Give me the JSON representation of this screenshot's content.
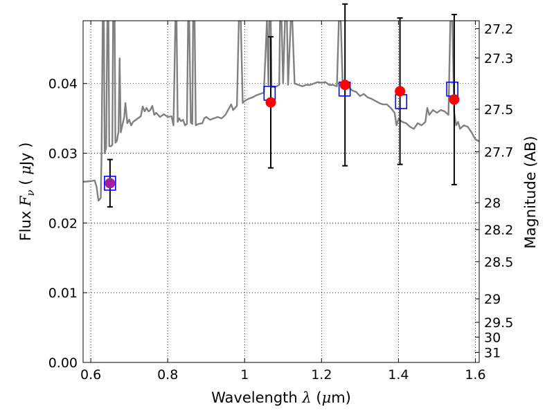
{
  "chart_data": {
    "type": "scatter",
    "title": "",
    "xlabel": {
      "prefix": "Wavelength  ",
      "symbol": "λ",
      "unit_open": " (",
      "unit_symbol": "μ",
      "unit_rest": "m)"
    },
    "ylabel": {
      "prefix": "Flux  ",
      "symbol": "F",
      "subscript": "ν",
      "unit_open": "  ( ",
      "unit_symbol": "μ",
      "unit_rest": "Jy )"
    },
    "y2label": "Magnitude (AB)",
    "xlim": [
      0.58,
      1.61
    ],
    "ylim": [
      0.0,
      0.049
    ],
    "grid": true,
    "x_ticks": [
      {
        "value": 0.6,
        "label": "0.6"
      },
      {
        "value": 0.8,
        "label": "0.8"
      },
      {
        "value": 1.0,
        "label": "1"
      },
      {
        "value": 1.2,
        "label": "1.2"
      },
      {
        "value": 1.4,
        "label": "1.4"
      },
      {
        "value": 1.6,
        "label": "1.6"
      }
    ],
    "y_ticks": [
      {
        "value": 0.0,
        "label": "0.00"
      },
      {
        "value": 0.01,
        "label": "0.01"
      },
      {
        "value": 0.02,
        "label": "0.02"
      },
      {
        "value": 0.03,
        "label": "0.03"
      },
      {
        "value": 0.04,
        "label": "0.04"
      }
    ],
    "y2_ticks": [
      {
        "label": "27.2",
        "mag": 27.2
      },
      {
        "label": "27.3",
        "mag": 27.3
      },
      {
        "label": "27.5",
        "mag": 27.5
      },
      {
        "label": "27.7",
        "mag": 27.7
      },
      {
        "label": "28",
        "mag": 28.0
      },
      {
        "label": "28.2",
        "mag": 28.2
      },
      {
        "label": "28.5",
        "mag": 28.5
      },
      {
        "label": "29",
        "mag": 29.0
      },
      {
        "label": "29.5",
        "mag": 29.5
      },
      {
        "label": "30",
        "mag": 30.0
      },
      {
        "label": "31",
        "mag": 31.0
      }
    ],
    "series": [
      {
        "type": "line",
        "color": "#808080",
        "points": [
          [
            0.58,
            0.0259
          ],
          [
            0.6,
            0.026
          ],
          [
            0.61,
            0.0261
          ],
          [
            0.615,
            0.0252
          ],
          [
            0.62,
            0.0232
          ],
          [
            0.626,
            0.0236
          ],
          [
            0.628,
            0.03
          ],
          [
            0.631,
            0.049
          ],
          [
            0.634,
            0.049
          ],
          [
            0.636,
            0.03
          ],
          [
            0.64,
            0.0308
          ],
          [
            0.643,
            0.049
          ],
          [
            0.646,
            0.049
          ],
          [
            0.648,
            0.031
          ],
          [
            0.652,
            0.031
          ],
          [
            0.656,
            0.0312
          ],
          [
            0.658,
            0.049
          ],
          [
            0.662,
            0.049
          ],
          [
            0.664,
            0.0315
          ],
          [
            0.668,
            0.0318
          ],
          [
            0.67,
            0.0325
          ],
          [
            0.672,
            0.033
          ],
          [
            0.675,
            0.0436
          ],
          [
            0.678,
            0.033
          ],
          [
            0.682,
            0.034
          ],
          [
            0.687,
            0.0352
          ],
          [
            0.69,
            0.0372
          ],
          [
            0.695,
            0.0343
          ],
          [
            0.7,
            0.0348
          ],
          [
            0.705,
            0.034
          ],
          [
            0.71,
            0.0345
          ],
          [
            0.72,
            0.0349
          ],
          [
            0.73,
            0.0353
          ],
          [
            0.735,
            0.0367
          ],
          [
            0.74,
            0.036
          ],
          [
            0.745,
            0.0365
          ],
          [
            0.75,
            0.036
          ],
          [
            0.755,
            0.0362
          ],
          [
            0.76,
            0.0368
          ],
          [
            0.765,
            0.0355
          ],
          [
            0.77,
            0.0358
          ],
          [
            0.78,
            0.0352
          ],
          [
            0.79,
            0.0356
          ],
          [
            0.8,
            0.0352
          ],
          [
            0.81,
            0.0353
          ],
          [
            0.815,
            0.034
          ],
          [
            0.82,
            0.049
          ],
          [
            0.823,
            0.049
          ],
          [
            0.826,
            0.0345
          ],
          [
            0.83,
            0.035
          ],
          [
            0.835,
            0.0346
          ],
          [
            0.84,
            0.0348
          ],
          [
            0.845,
            0.034
          ],
          [
            0.85,
            0.0342
          ],
          [
            0.853,
            0.049
          ],
          [
            0.856,
            0.049
          ],
          [
            0.86,
            0.0344
          ],
          [
            0.864,
            0.0342
          ],
          [
            0.866,
            0.049
          ],
          [
            0.87,
            0.049
          ],
          [
            0.873,
            0.034
          ],
          [
            0.88,
            0.0342
          ],
          [
            0.89,
            0.0343
          ],
          [
            0.895,
            0.035
          ],
          [
            0.9,
            0.0352
          ],
          [
            0.91,
            0.0348
          ],
          [
            0.92,
            0.035
          ],
          [
            0.93,
            0.0352
          ],
          [
            0.94,
            0.035
          ],
          [
            0.95,
            0.0355
          ],
          [
            0.96,
            0.0365
          ],
          [
            0.965,
            0.037
          ],
          [
            0.97,
            0.0362
          ],
          [
            0.975,
            0.0365
          ],
          [
            0.98,
            0.0368
          ],
          [
            0.985,
            0.049
          ],
          [
            0.99,
            0.049
          ],
          [
            0.995,
            0.0372
          ],
          [
            1.0,
            0.0375
          ],
          [
            1.01,
            0.0378
          ],
          [
            1.02,
            0.038
          ],
          [
            1.03,
            0.0383
          ],
          [
            1.04,
            0.0385
          ],
          [
            1.05,
            0.0387
          ],
          [
            1.058,
            0.049
          ],
          [
            1.062,
            0.0398
          ],
          [
            1.064,
            0.049
          ],
          [
            1.068,
            0.049
          ],
          [
            1.07,
            0.0395
          ],
          [
            1.08,
            0.0395
          ],
          [
            1.09,
            0.0398
          ],
          [
            1.092,
            0.049
          ],
          [
            1.096,
            0.049
          ],
          [
            1.1,
            0.04
          ],
          [
            1.105,
            0.049
          ],
          [
            1.11,
            0.049
          ],
          [
            1.113,
            0.0398
          ],
          [
            1.12,
            0.049
          ],
          [
            1.124,
            0.049
          ],
          [
            1.13,
            0.04
          ],
          [
            1.14,
            0.0398
          ],
          [
            1.15,
            0.0396
          ],
          [
            1.16,
            0.0398
          ],
          [
            1.17,
            0.0398
          ],
          [
            1.18,
            0.04
          ],
          [
            1.19,
            0.0402
          ],
          [
            1.2,
            0.0401
          ],
          [
            1.21,
            0.0402
          ],
          [
            1.22,
            0.0398
          ],
          [
            1.23,
            0.0398
          ],
          [
            1.24,
            0.0396
          ],
          [
            1.245,
            0.049
          ],
          [
            1.25,
            0.049
          ],
          [
            1.255,
            0.0398
          ],
          [
            1.26,
            0.0395
          ],
          [
            1.27,
            0.0395
          ],
          [
            1.28,
            0.039
          ],
          [
            1.29,
            0.0388
          ],
          [
            1.3,
            0.0382
          ],
          [
            1.31,
            0.0385
          ],
          [
            1.32,
            0.038
          ],
          [
            1.33,
            0.0378
          ],
          [
            1.34,
            0.0375
          ],
          [
            1.35,
            0.0372
          ],
          [
            1.36,
            0.037
          ],
          [
            1.37,
            0.037
          ],
          [
            1.38,
            0.0365
          ],
          [
            1.39,
            0.0358
          ],
          [
            1.395,
            0.034
          ],
          [
            1.4,
            0.0349
          ],
          [
            1.41,
            0.0345
          ],
          [
            1.42,
            0.0343
          ],
          [
            1.43,
            0.0338
          ],
          [
            1.44,
            0.0335
          ],
          [
            1.45,
            0.0343
          ],
          [
            1.46,
            0.034
          ],
          [
            1.47,
            0.0345
          ],
          [
            1.475,
            0.0365
          ],
          [
            1.48,
            0.0355
          ],
          [
            1.49,
            0.0362
          ],
          [
            1.5,
            0.0358
          ],
          [
            1.51,
            0.0362
          ],
          [
            1.52,
            0.036
          ],
          [
            1.53,
            0.0355
          ],
          [
            1.535,
            0.049
          ],
          [
            1.54,
            0.049
          ],
          [
            1.545,
            0.0358
          ],
          [
            1.55,
            0.034
          ],
          [
            1.555,
            0.0345
          ],
          [
            1.56,
            0.0335
          ],
          [
            1.57,
            0.034
          ],
          [
            1.58,
            0.0338
          ],
          [
            1.59,
            0.033
          ],
          [
            1.6,
            0.032
          ],
          [
            1.61,
            0.0317
          ]
        ]
      },
      {
        "type": "scatter",
        "marker": "square-open",
        "color": "#0000ff",
        "points": [
          [
            0.65,
            0.0257
          ],
          [
            1.065,
            0.0386
          ],
          [
            1.26,
            0.0392
          ],
          [
            1.407,
            0.0374
          ],
          [
            1.54,
            0.0392
          ]
        ]
      },
      {
        "type": "scatter",
        "marker": "circle-filled",
        "color": "#ff0000",
        "points": [
          {
            "x": 0.65,
            "y": 0.0257,
            "yerr": [
              0.0034,
              0.0034
            ],
            "color": "#a020a0"
          },
          {
            "x": 1.068,
            "y": 0.0373,
            "yerr": [
              0.0094,
              0.0094
            ]
          },
          {
            "x": 1.261,
            "y": 0.0398,
            "yerr": [
              0.0116,
              0.0116
            ]
          },
          {
            "x": 1.404,
            "y": 0.0389,
            "yerr": [
              0.0105,
              0.0105
            ]
          },
          {
            "x": 1.545,
            "y": 0.0377,
            "yerr": [
              0.0122,
              0.0122
            ]
          }
        ]
      }
    ]
  }
}
